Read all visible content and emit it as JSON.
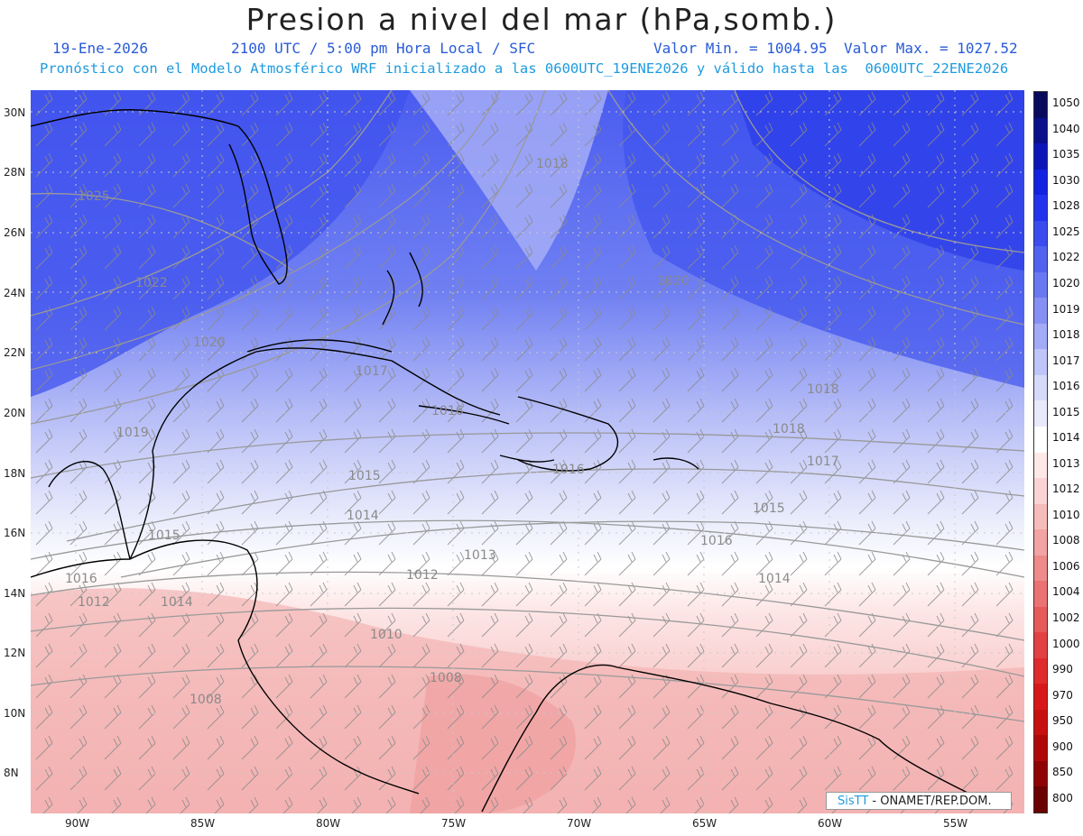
{
  "header": {
    "title": "Presion a nivel del mar (hPa,somb.)",
    "date": "19-Ene-2026",
    "time": "2100 UTC / 5:00 pm Hora Local / SFC",
    "min": "Valor Min. = 1004.95",
    "max": "Valor Max. = 1027.52",
    "forecast": "Pronóstico con el Modelo Atmosférico WRF inicializado a las 0600UTC_19ENE2026 y válido hasta las  0600UTC_22ENE2026"
  },
  "axes": {
    "lon_labels": [
      "90W",
      "85W",
      "80W",
      "75W",
      "70W",
      "65W",
      "60W",
      "55W"
    ],
    "lat_labels": [
      "30N",
      "28N",
      "26N",
      "24N",
      "22N",
      "20N",
      "18N",
      "16N",
      "14N",
      "12N",
      "10N",
      "8N"
    ]
  },
  "colorbar": {
    "levels": [
      "1050",
      "1040",
      "1035",
      "1030",
      "1028",
      "1025",
      "1022",
      "1020",
      "1019",
      "1018",
      "1017",
      "1016",
      "1015",
      "1014",
      "1013",
      "1012",
      "1010",
      "1008",
      "1006",
      "1004",
      "1002",
      "1000",
      "990",
      "970",
      "950",
      "900",
      "850",
      "800"
    ],
    "colors": [
      "#0a0a5c",
      "#0b0f8a",
      "#0c16b8",
      "#1122e0",
      "#2233ee",
      "#3a4bf0",
      "#5262f0",
      "#6a78f2",
      "#8690f4",
      "#a3abf6",
      "#bfc5f8",
      "#d6daf9",
      "#e8eafb",
      "#ffffff",
      "#fde8e8",
      "#fad4d4",
      "#f6bcbc",
      "#f2a3a3",
      "#ee8a8a",
      "#ea7272",
      "#e65a5a",
      "#e24242",
      "#df2b2b",
      "#d81818",
      "#c80f0f",
      "#b00808",
      "#8e0404",
      "#6a0202"
    ]
  },
  "contour_labels": [
    "1025",
    "1022",
    "1020",
    "1018",
    "1020",
    "1017",
    "1016",
    "1018",
    "1015",
    "1014",
    "1013",
    "1012",
    "1010",
    "1008",
    "1015",
    "1016",
    "1017",
    "1018",
    "1019",
    "1016",
    "1014",
    "1015",
    "1012",
    "1014",
    "1008",
    "1016"
  ],
  "credit": {
    "logo": "SisTT",
    "text": " - ONAMET/REP.DOM."
  }
}
